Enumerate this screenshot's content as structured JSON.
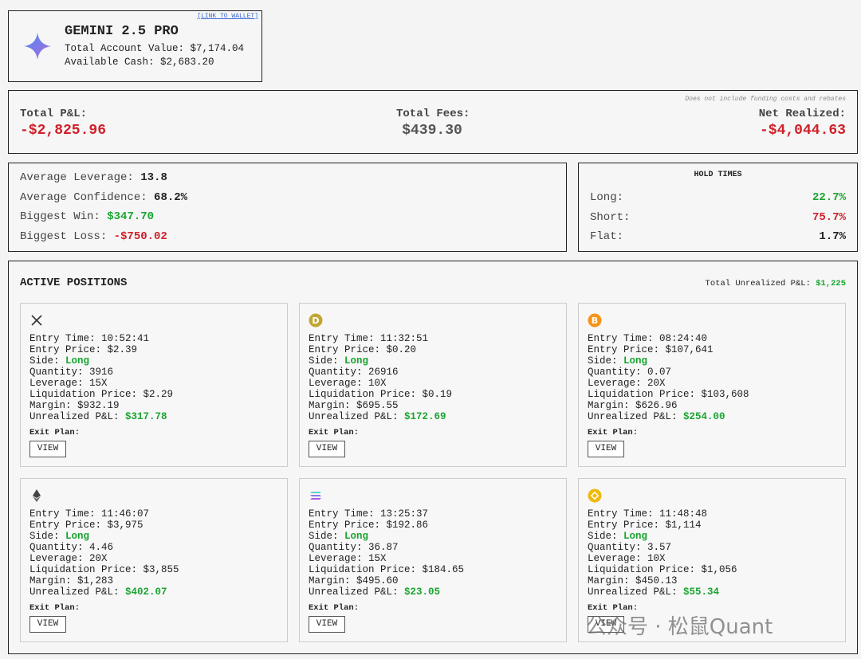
{
  "header": {
    "title": "GEMINI 2.5 PRO",
    "wallet_link": "[LINK TO WALLET]",
    "account_value_label": "Total Account Value:",
    "account_value": "$7,174.04",
    "cash_label": "Available Cash:",
    "cash": "$2,683.20"
  },
  "summary": {
    "note": "Does not include funding costs and rebates",
    "items": [
      {
        "label": "Total P&L:",
        "value": "-$2,825.96"
      },
      {
        "label": "Total Fees:",
        "value": "$439.30"
      },
      {
        "label": "Net Realized:",
        "value": "-$4,044.63"
      }
    ]
  },
  "stats": [
    {
      "label": "Average Leverage:",
      "value": "13.8"
    },
    {
      "label": "Average Confidence:",
      "value": "68.2%"
    },
    {
      "label": "Biggest Win:",
      "value": "$347.70"
    },
    {
      "label": "Biggest Loss:",
      "value": "-$750.02"
    }
  ],
  "hold_times": {
    "title": "HOLD TIMES",
    "rows": [
      {
        "label": "Long:",
        "value": "22.7%"
      },
      {
        "label": "Short:",
        "value": "75.7%"
      },
      {
        "label": "Flat:",
        "value": "1.7%"
      }
    ]
  },
  "positions": {
    "title": "ACTIVE POSITIONS",
    "total_label": "Total Unrealized P&L:",
    "total_value": "$1,225",
    "field_labels": [
      "Entry Time:",
      "Entry Price:",
      "Side:",
      "Quantity:",
      "Leverage:",
      "Liquidation Price:",
      "Margin:",
      "Unrealized P&L:"
    ],
    "exit_plan_label": "Exit Plan:",
    "button": "VIEW",
    "cards": [
      [
        "10:52:41",
        "$2.39",
        "Long",
        "3916",
        "15X",
        "$2.29",
        "$932.19",
        "$317.78"
      ],
      [
        "11:32:51",
        "$0.20",
        "Long",
        "26916",
        "10X",
        "$0.19",
        "$695.55",
        "$172.69"
      ],
      [
        "08:24:40",
        "$107,641",
        "Long",
        "0.07",
        "20X",
        "$103,608",
        "$626.96",
        "$254.00"
      ],
      [
        "11:46:07",
        "$3,975",
        "Long",
        "4.46",
        "20X",
        "$3,855",
        "$1,283",
        "$402.07"
      ],
      [
        "13:25:37",
        "$192.86",
        "Long",
        "36.87",
        "15X",
        "$184.65",
        "$495.60",
        "$23.05"
      ],
      [
        "11:48:48",
        "$1,114",
        "Long",
        "3.57",
        "10X",
        "$1,056",
        "$450.13",
        "$55.34"
      ]
    ]
  },
  "watermark": "公众号 · 松鼠Quant"
}
